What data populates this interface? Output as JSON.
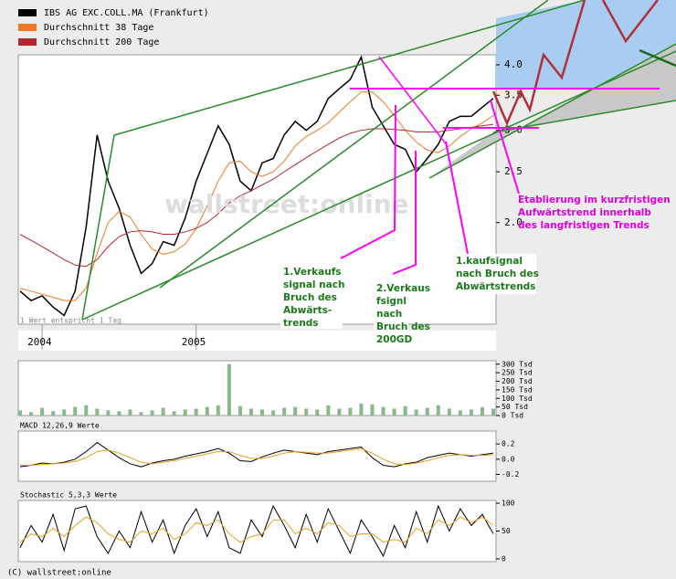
{
  "chart_data": [
    {
      "type": "line",
      "log_scale": true,
      "categories": [
        null,
        null,
        "2004",
        null,
        null,
        null,
        null,
        null,
        null,
        null,
        null,
        null,
        null,
        null,
        null,
        null,
        "2005",
        null,
        null,
        null,
        null,
        null,
        null,
        null,
        null,
        null,
        null,
        null,
        null,
        null,
        null,
        null,
        null,
        null,
        null,
        null,
        null,
        null,
        null,
        null,
        null,
        null,
        null,
        null
      ],
      "series": [
        {
          "name": "IBS AG EXC.COLL.MA (Frankfurt)",
          "color": "#000000",
          "values": [
            1.48,
            1.42,
            1.45,
            1.38,
            1.33,
            1.48,
            1.96,
            2.94,
            2.4,
            2.13,
            1.81,
            1.6,
            1.67,
            1.84,
            1.81,
            2.04,
            2.4,
            2.71,
            3.06,
            2.82,
            2.4,
            2.3,
            2.6,
            2.65,
            2.94,
            3.12,
            3.0,
            3.12,
            3.45,
            3.6,
            3.75,
            4.14,
            3.32,
            3.06,
            2.82,
            2.76,
            2.5,
            2.65,
            2.82,
            3.12,
            3.19,
            3.19,
            3.32,
            3.45
          ]
        },
        {
          "name": "Durchschnitt 38 Tage",
          "color": "#f07820",
          "values": [
            1.5,
            1.48,
            1.46,
            1.44,
            1.42,
            1.42,
            1.5,
            1.75,
            2.0,
            2.1,
            2.05,
            1.9,
            1.78,
            1.74,
            1.76,
            1.82,
            1.95,
            2.15,
            2.4,
            2.6,
            2.62,
            2.5,
            2.45,
            2.5,
            2.62,
            2.8,
            2.92,
            3.0,
            3.1,
            3.25,
            3.4,
            3.55,
            3.55,
            3.4,
            3.2,
            3.0,
            2.85,
            2.75,
            2.72,
            2.8,
            2.92,
            3.02,
            3.1,
            3.2
          ]
        },
        {
          "name": "Durchschnitt 200 Tage",
          "color": "#b02830",
          "values": [
            1.9,
            1.85,
            1.8,
            1.75,
            1.7,
            1.66,
            1.65,
            1.7,
            1.8,
            1.88,
            1.92,
            1.93,
            1.92,
            1.9,
            1.9,
            1.92,
            1.95,
            2.0,
            2.08,
            2.18,
            2.25,
            2.3,
            2.36,
            2.42,
            2.5,
            2.58,
            2.66,
            2.74,
            2.82,
            2.9,
            2.96,
            3.0,
            3.02,
            3.02,
            3.01,
            3.0,
            2.98,
            2.98,
            2.98,
            3.0,
            3.02,
            3.04,
            3.06,
            3.08
          ]
        }
      ],
      "ylim": [
        1.28,
        4.18
      ],
      "yticks": [
        {
          "value": 4,
          "label": "4.0"
        },
        3.5,
        {
          "value": 3,
          "label": "3.0"
        },
        2.5,
        {
          "value": 2,
          "label": "2.0"
        }
      ],
      "note": "1 Wert entspricht 1 Tag",
      "watermark": "wallstreet:online",
      "annotations": [
        [
          "1.Verkaufs",
          "signal nach",
          "Bruch des",
          "Abwärts-",
          "trends"
        ],
        [
          "2.Verkaus",
          "fsignl",
          "nach",
          "Bruch des",
          "200GD"
        ],
        [
          "1.kaufsignal",
          "nach Bruch des",
          " Abwärtstrends"
        ],
        [
          "Etablierung im kurzfristigen",
          "Aufwärtstrend innerhalb",
          "des langfristigen Trends"
        ]
      ]
    },
    {
      "type": "bar",
      "color": "#8ab88a",
      "values": [
        30,
        20,
        45,
        25,
        35,
        50,
        60,
        40,
        30,
        25,
        35,
        20,
        30,
        45,
        25,
        35,
        40,
        50,
        60,
        300,
        55,
        40,
        35,
        30,
        45,
        50,
        40,
        35,
        60,
        40,
        45,
        70,
        65,
        50,
        40,
        55,
        35,
        45,
        60,
        40,
        30,
        35,
        50,
        40
      ],
      "ylim": [
        0,
        320
      ],
      "yticks": [
        {
          "value": 300,
          "label": "300 Tsd"
        },
        {
          "value": 250,
          "label": "250 Tsd"
        },
        {
          "value": 200,
          "label": "200 Tsd"
        },
        {
          "value": 150,
          "label": "150 Tsd"
        },
        {
          "value": 100,
          "label": "100 Tsd"
        },
        {
          "value": 50,
          "label": "50 Tsd"
        },
        {
          "value": 0,
          "label": "0 Tsd"
        }
      ]
    },
    {
      "type": "line",
      "title": "MACD 12,26,9 Werte",
      "series": [
        {
          "color": "#000000",
          "values": [
            -0.1,
            -0.08,
            -0.05,
            -0.06,
            -0.04,
            0.0,
            0.1,
            0.22,
            0.12,
            0.02,
            -0.06,
            -0.1,
            -0.05,
            -0.02,
            0.0,
            0.04,
            0.07,
            0.1,
            0.14,
            0.08,
            -0.02,
            -0.03,
            0.03,
            0.08,
            0.12,
            0.1,
            0.08,
            0.06,
            0.1,
            0.12,
            0.14,
            0.16,
            0.02,
            -0.08,
            -0.1,
            -0.06,
            -0.04,
            0.02,
            0.05,
            0.08,
            0.06,
            0.04,
            0.06,
            0.08
          ]
        },
        {
          "color": "#e8a020",
          "values": [
            -0.08,
            -0.08,
            -0.07,
            -0.06,
            -0.05,
            -0.03,
            0.02,
            0.1,
            0.12,
            0.08,
            0.02,
            -0.04,
            -0.06,
            -0.04,
            -0.02,
            0.01,
            0.04,
            0.07,
            0.1,
            0.1,
            0.05,
            0.01,
            0.01,
            0.04,
            0.08,
            0.1,
            0.09,
            0.08,
            0.08,
            0.1,
            0.12,
            0.14,
            0.08,
            0.0,
            -0.06,
            -0.07,
            -0.05,
            -0.02,
            0.02,
            0.05,
            0.06,
            0.05,
            0.05,
            0.06
          ]
        }
      ],
      "ylim": [
        -0.29,
        0.37
      ],
      "yticks": [
        0.2,
        {
          "value": 0,
          "label": "0.0"
        },
        -0.2
      ]
    },
    {
      "type": "line",
      "title": "Stochastic 5,3,3 Werte",
      "series": [
        {
          "color": "#000000",
          "values": [
            20,
            60,
            30,
            80,
            15,
            90,
            95,
            40,
            10,
            50,
            20,
            85,
            30,
            70,
            10,
            60,
            90,
            40,
            85,
            20,
            10,
            70,
            40,
            95,
            60,
            20,
            80,
            30,
            90,
            50,
            10,
            70,
            40,
            5,
            60,
            20,
            85,
            30,
            95,
            50,
            90,
            60,
            80,
            45
          ]
        },
        {
          "color": "#e8a020",
          "values": [
            30,
            45,
            40,
            55,
            40,
            60,
            75,
            65,
            45,
            35,
            30,
            50,
            45,
            55,
            35,
            45,
            65,
            60,
            70,
            45,
            30,
            40,
            45,
            70,
            70,
            45,
            55,
            45,
            65,
            60,
            40,
            45,
            45,
            30,
            35,
            30,
            55,
            45,
            70,
            60,
            75,
            65,
            75,
            60
          ]
        }
      ],
      "ylim": [
        -5,
        105
      ],
      "yticks": [
        100,
        50,
        0
      ]
    }
  ],
  "footer": "(C) wallstreet:online"
}
